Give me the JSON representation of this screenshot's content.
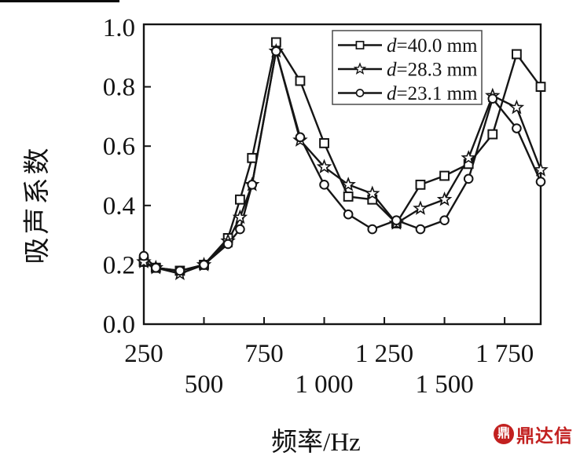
{
  "figure": {
    "background": "#ffffff",
    "ink_color": "#141414"
  },
  "watermark": {
    "text": "鼎达信",
    "icon_glyph": "鼎",
    "color": "#c2201f"
  },
  "chart_data": {
    "type": "line",
    "title": "",
    "xlabel": "频率/Hz",
    "ylabel": "吸声系数",
    "xlim": [
      250,
      1900
    ],
    "ylim": [
      0.0,
      1.0
    ],
    "grid": false,
    "legend_position": "top-inside",
    "x_ticks": [
      {
        "value": 250,
        "label": "250",
        "row": 1
      },
      {
        "value": 500,
        "label": "500",
        "row": 2
      },
      {
        "value": 750,
        "label": "750",
        "row": 1
      },
      {
        "value": 1000,
        "label": "1 000",
        "row": 2
      },
      {
        "value": 1250,
        "label": "1 250",
        "row": 1
      },
      {
        "value": 1500,
        "label": "1 500",
        "row": 2
      },
      {
        "value": 1750,
        "label": "1 750",
        "row": 1
      }
    ],
    "y_ticks": [
      {
        "value": 0.0,
        "label": "0.0"
      },
      {
        "value": 0.2,
        "label": "0.2"
      },
      {
        "value": 0.4,
        "label": "0.4"
      },
      {
        "value": 0.6,
        "label": "0.6"
      },
      {
        "value": 0.8,
        "label": "0.8"
      },
      {
        "value": 1.0,
        "label": "1.0"
      }
    ],
    "x": [
      250,
      300,
      400,
      500,
      600,
      650,
      700,
      800,
      900,
      1000,
      1100,
      1200,
      1300,
      1400,
      1500,
      1600,
      1700,
      1800,
      1900
    ],
    "series": [
      {
        "name": "d=40.0 mm",
        "legend_var": "d",
        "legend_rest": "=40.0 mm",
        "marker": "square",
        "color": "#151515",
        "values": [
          0.21,
          0.19,
          0.18,
          0.2,
          0.29,
          0.42,
          0.56,
          0.95,
          0.82,
          0.61,
          0.43,
          0.42,
          0.34,
          0.47,
          0.5,
          0.54,
          0.64,
          0.91,
          0.8
        ]
      },
      {
        "name": "d=28.3 mm",
        "legend_var": "d",
        "legend_rest": "=28.3 mm",
        "marker": "star",
        "color": "#151515",
        "values": [
          0.21,
          0.19,
          0.17,
          0.2,
          0.28,
          0.36,
          0.47,
          0.92,
          0.62,
          0.53,
          0.47,
          0.44,
          0.34,
          0.39,
          0.42,
          0.56,
          0.77,
          0.73,
          0.52
        ]
      },
      {
        "name": "d=23.1 mm",
        "legend_var": "d",
        "legend_rest": "=23.1 mm",
        "marker": "circle",
        "color": "#151515",
        "values": [
          0.23,
          0.19,
          0.18,
          0.2,
          0.27,
          0.32,
          0.47,
          0.92,
          0.63,
          0.47,
          0.37,
          0.32,
          0.35,
          0.32,
          0.35,
          0.49,
          0.76,
          0.66,
          0.48
        ]
      }
    ]
  }
}
